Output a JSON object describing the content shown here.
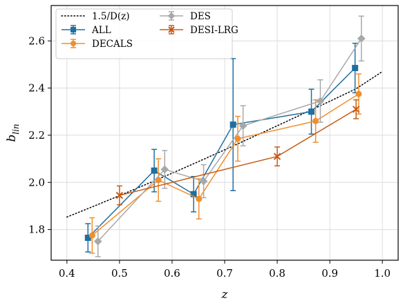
{
  "chart_data": {
    "type": "line",
    "xlabel": "z",
    "ylabel": "b_lin",
    "xlim": [
      0.37,
      1.03
    ],
    "ylim": [
      1.67,
      2.75
    ],
    "grid": true,
    "legend_placement": "top-left",
    "xticks": [
      "0.4",
      "0.5",
      "0.6",
      "0.7",
      "0.8",
      "0.9",
      "1.0"
    ],
    "yticks": [
      "1.8",
      "2.0",
      "2.2",
      "2.4",
      "2.6"
    ],
    "reference": {
      "name": "1.5/D(z)",
      "x": [
        0.4,
        0.45,
        0.5,
        0.55,
        0.6,
        0.65,
        0.7,
        0.75,
        0.8,
        0.85,
        0.9,
        0.95,
        1.0
      ],
      "y": [
        1.853,
        1.898,
        1.944,
        1.991,
        2.039,
        2.088,
        2.138,
        2.189,
        2.24,
        2.292,
        2.344,
        2.397,
        2.47
      ],
      "color": "#000000"
    },
    "series": [
      {
        "name": "ALL",
        "color": "#1f6fa0",
        "marker": "square",
        "x": [
          0.44,
          0.566,
          0.641,
          0.716,
          0.865,
          0.948
        ],
        "y": [
          1.765,
          2.05,
          1.95,
          2.245,
          2.3,
          2.485
        ],
        "err": [
          0.06,
          0.09,
          0.075,
          0.28,
          0.095,
          0.105
        ]
      },
      {
        "name": "DECALS",
        "color": "#f28e2b",
        "marker": "circle",
        "x": [
          0.448,
          0.574,
          0.651,
          0.725,
          0.873,
          0.955
        ],
        "y": [
          1.775,
          2.01,
          1.93,
          2.185,
          2.26,
          2.375
        ],
        "err": [
          0.075,
          0.09,
          0.085,
          0.095,
          0.09,
          0.085
        ]
      },
      {
        "name": "DES",
        "color": "#a8a8a8",
        "marker": "diamond",
        "x": [
          0.459,
          0.586,
          0.66,
          0.735,
          0.882,
          0.96
        ],
        "y": [
          1.75,
          2.055,
          2.005,
          2.24,
          2.345,
          2.61
        ],
        "err": [
          0.065,
          0.08,
          0.07,
          0.085,
          0.09,
          0.095
        ]
      },
      {
        "name": "DESI-LRG",
        "color": "#c75a14",
        "marker": "x",
        "x": [
          0.5,
          0.8,
          0.95
        ],
        "y": [
          1.945,
          2.11,
          2.31
        ],
        "err": [
          0.04,
          0.04,
          0.04
        ]
      }
    ]
  }
}
